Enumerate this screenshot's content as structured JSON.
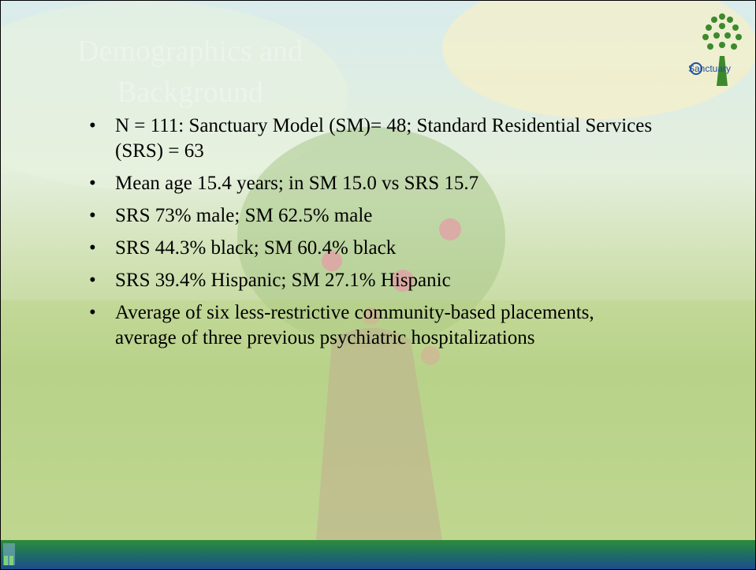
{
  "slide": {
    "title": "Demographics and Background",
    "logo_text": "Sanctuary",
    "bullets": [
      "N = 111: Sanctuary Model (SM)= 48; Standard Residential Services (SRS) = 63",
      "Mean age 15.4 years; in SM 15.0 vs SRS 15.7",
      "SRS 73% male; SM 62.5% male",
      "SRS 44.3% black; SM 60.4% black",
      "SRS 39.4% Hispanic; SM 27.1% Hispanic",
      "Average of six less-restrictive community-based placements, average of three previous psychiatric hospitalizations"
    ]
  }
}
